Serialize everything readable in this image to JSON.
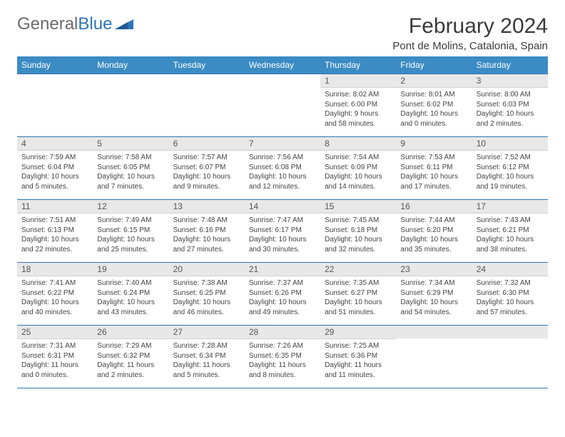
{
  "brand": {
    "part1": "General",
    "part2": "Blue"
  },
  "title": "February 2024",
  "location": "Pont de Molins, Catalonia, Spain",
  "colors": {
    "header_bg": "#3b8bc4",
    "header_text": "#ffffff",
    "daynum_bg": "#e8e8e8",
    "border": "#2e75b6",
    "logo_gray": "#6b6b6b",
    "logo_blue": "#2e75b6"
  },
  "weekdays": [
    "Sunday",
    "Monday",
    "Tuesday",
    "Wednesday",
    "Thursday",
    "Friday",
    "Saturday"
  ],
  "weeks": [
    [
      null,
      null,
      null,
      null,
      {
        "n": "1",
        "sr": "Sunrise: 8:02 AM",
        "ss": "Sunset: 6:00 PM",
        "dl": "Daylight: 9 hours and 58 minutes."
      },
      {
        "n": "2",
        "sr": "Sunrise: 8:01 AM",
        "ss": "Sunset: 6:02 PM",
        "dl": "Daylight: 10 hours and 0 minutes."
      },
      {
        "n": "3",
        "sr": "Sunrise: 8:00 AM",
        "ss": "Sunset: 6:03 PM",
        "dl": "Daylight: 10 hours and 2 minutes."
      }
    ],
    [
      {
        "n": "4",
        "sr": "Sunrise: 7:59 AM",
        "ss": "Sunset: 6:04 PM",
        "dl": "Daylight: 10 hours and 5 minutes."
      },
      {
        "n": "5",
        "sr": "Sunrise: 7:58 AM",
        "ss": "Sunset: 6:05 PM",
        "dl": "Daylight: 10 hours and 7 minutes."
      },
      {
        "n": "6",
        "sr": "Sunrise: 7:57 AM",
        "ss": "Sunset: 6:07 PM",
        "dl": "Daylight: 10 hours and 9 minutes."
      },
      {
        "n": "7",
        "sr": "Sunrise: 7:56 AM",
        "ss": "Sunset: 6:08 PM",
        "dl": "Daylight: 10 hours and 12 minutes."
      },
      {
        "n": "8",
        "sr": "Sunrise: 7:54 AM",
        "ss": "Sunset: 6:09 PM",
        "dl": "Daylight: 10 hours and 14 minutes."
      },
      {
        "n": "9",
        "sr": "Sunrise: 7:53 AM",
        "ss": "Sunset: 6:11 PM",
        "dl": "Daylight: 10 hours and 17 minutes."
      },
      {
        "n": "10",
        "sr": "Sunrise: 7:52 AM",
        "ss": "Sunset: 6:12 PM",
        "dl": "Daylight: 10 hours and 19 minutes."
      }
    ],
    [
      {
        "n": "11",
        "sr": "Sunrise: 7:51 AM",
        "ss": "Sunset: 6:13 PM",
        "dl": "Daylight: 10 hours and 22 minutes."
      },
      {
        "n": "12",
        "sr": "Sunrise: 7:49 AM",
        "ss": "Sunset: 6:15 PM",
        "dl": "Daylight: 10 hours and 25 minutes."
      },
      {
        "n": "13",
        "sr": "Sunrise: 7:48 AM",
        "ss": "Sunset: 6:16 PM",
        "dl": "Daylight: 10 hours and 27 minutes."
      },
      {
        "n": "14",
        "sr": "Sunrise: 7:47 AM",
        "ss": "Sunset: 6:17 PM",
        "dl": "Daylight: 10 hours and 30 minutes."
      },
      {
        "n": "15",
        "sr": "Sunrise: 7:45 AM",
        "ss": "Sunset: 6:18 PM",
        "dl": "Daylight: 10 hours and 32 minutes."
      },
      {
        "n": "16",
        "sr": "Sunrise: 7:44 AM",
        "ss": "Sunset: 6:20 PM",
        "dl": "Daylight: 10 hours and 35 minutes."
      },
      {
        "n": "17",
        "sr": "Sunrise: 7:43 AM",
        "ss": "Sunset: 6:21 PM",
        "dl": "Daylight: 10 hours and 38 minutes."
      }
    ],
    [
      {
        "n": "18",
        "sr": "Sunrise: 7:41 AM",
        "ss": "Sunset: 6:22 PM",
        "dl": "Daylight: 10 hours and 40 minutes."
      },
      {
        "n": "19",
        "sr": "Sunrise: 7:40 AM",
        "ss": "Sunset: 6:24 PM",
        "dl": "Daylight: 10 hours and 43 minutes."
      },
      {
        "n": "20",
        "sr": "Sunrise: 7:38 AM",
        "ss": "Sunset: 6:25 PM",
        "dl": "Daylight: 10 hours and 46 minutes."
      },
      {
        "n": "21",
        "sr": "Sunrise: 7:37 AM",
        "ss": "Sunset: 6:26 PM",
        "dl": "Daylight: 10 hours and 49 minutes."
      },
      {
        "n": "22",
        "sr": "Sunrise: 7:35 AM",
        "ss": "Sunset: 6:27 PM",
        "dl": "Daylight: 10 hours and 51 minutes."
      },
      {
        "n": "23",
        "sr": "Sunrise: 7:34 AM",
        "ss": "Sunset: 6:29 PM",
        "dl": "Daylight: 10 hours and 54 minutes."
      },
      {
        "n": "24",
        "sr": "Sunrise: 7:32 AM",
        "ss": "Sunset: 6:30 PM",
        "dl": "Daylight: 10 hours and 57 minutes."
      }
    ],
    [
      {
        "n": "25",
        "sr": "Sunrise: 7:31 AM",
        "ss": "Sunset: 6:31 PM",
        "dl": "Daylight: 11 hours and 0 minutes."
      },
      {
        "n": "26",
        "sr": "Sunrise: 7:29 AM",
        "ss": "Sunset: 6:32 PM",
        "dl": "Daylight: 11 hours and 2 minutes."
      },
      {
        "n": "27",
        "sr": "Sunrise: 7:28 AM",
        "ss": "Sunset: 6:34 PM",
        "dl": "Daylight: 11 hours and 5 minutes."
      },
      {
        "n": "28",
        "sr": "Sunrise: 7:26 AM",
        "ss": "Sunset: 6:35 PM",
        "dl": "Daylight: 11 hours and 8 minutes."
      },
      {
        "n": "29",
        "sr": "Sunrise: 7:25 AM",
        "ss": "Sunset: 6:36 PM",
        "dl": "Daylight: 11 hours and 11 minutes."
      },
      null,
      null
    ]
  ]
}
